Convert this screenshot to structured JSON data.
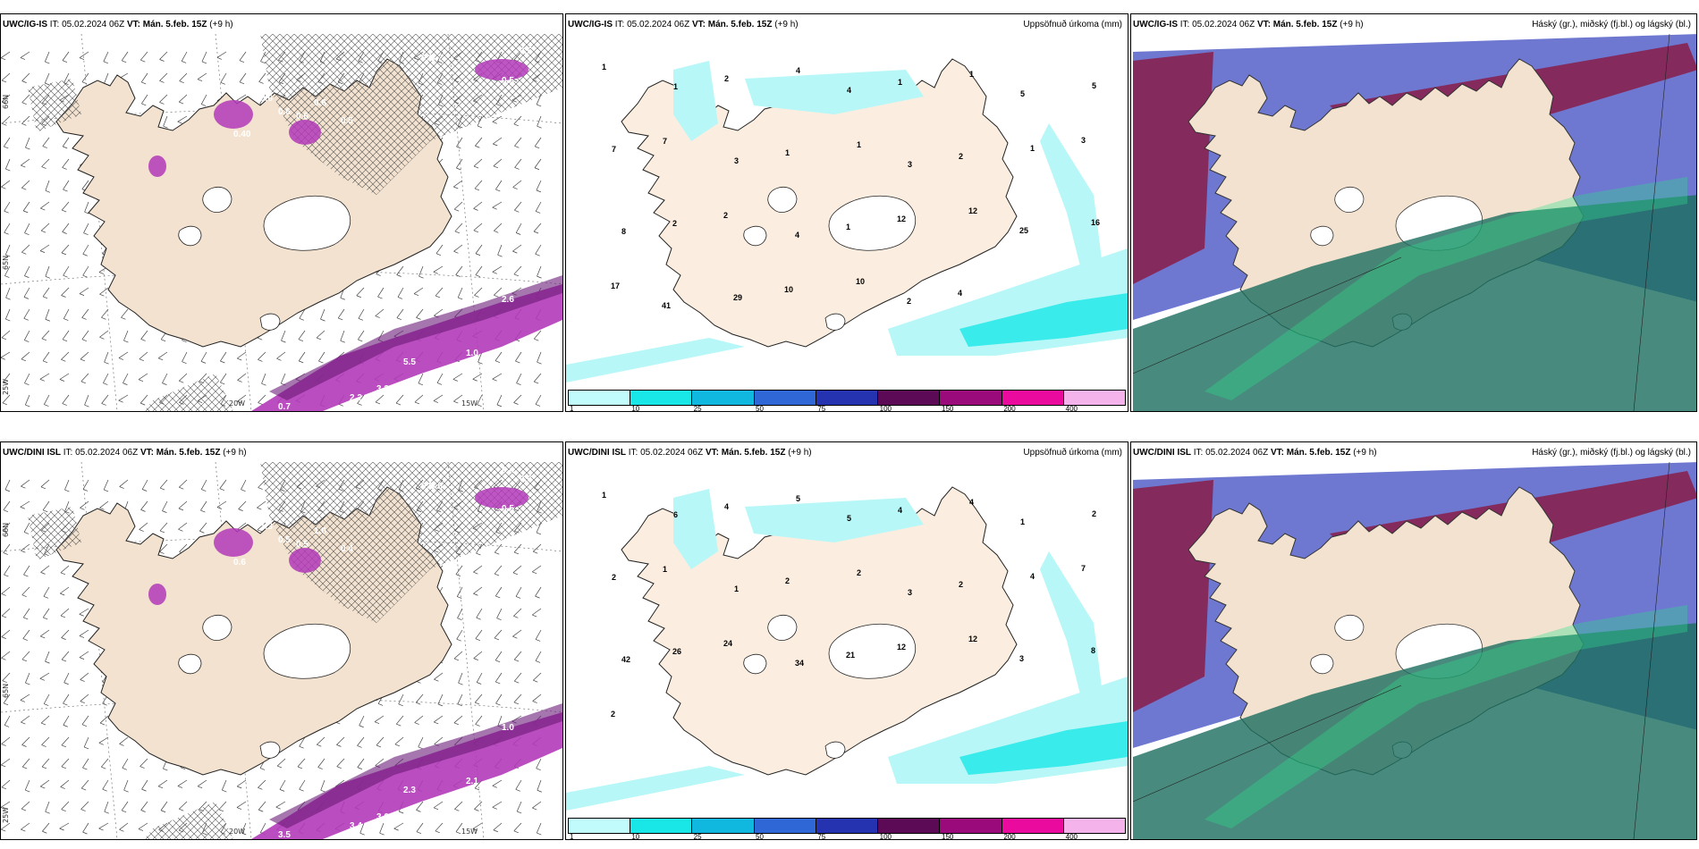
{
  "rows": [
    {
      "wind_panel": {
        "model": "UWC/IG-IS",
        "it": "IT: 05.02.2024 06Z",
        "vt": "VT: Mán. 5.feb. 15Z",
        "lead": "(+9 h)"
      },
      "precip_panel": {
        "model": "UWC/IG-IS",
        "it": "IT: 05.02.2024 06Z",
        "vt": "VT: Mán. 5.feb. 15Z",
        "lead": "(+9 h)",
        "right_title": "Uppsöfnuð úrkoma (mm)"
      },
      "cloud_panel": {
        "model": "UWC/IG-IS",
        "it": "IT: 05.02.2024 06Z",
        "vt": "VT: Mán. 5.feb. 15Z",
        "lead": "(+9 h)",
        "right_title": "Háský (gr.), miðský (fj.bl.) og lágský (bl.)"
      },
      "wind_labels": [
        "0.5",
        "0.6",
        "0.5",
        "0.40",
        "0.7",
        "0.6",
        "0.6",
        "0.5",
        "0.6",
        "0.6",
        "2.6",
        "1.0",
        "1.1",
        "5.5",
        "3.3",
        "2.2",
        "1.8",
        "0.7"
      ],
      "precip_labels": [
        "1",
        "1",
        "2",
        "4",
        "4",
        "1",
        "1",
        "5",
        "5",
        "7",
        "7",
        "3",
        "1",
        "1",
        "3",
        "2",
        "1",
        "3",
        "8",
        "2",
        "2",
        "4",
        "1",
        "12",
        "12",
        "25",
        "16",
        "17",
        "41",
        "29",
        "10",
        "10",
        "2",
        "4"
      ]
    },
    {
      "wind_panel": {
        "model": "UWC/DINI ISL",
        "it": "IT: 05.02.2024 06Z",
        "vt": "VT: Mán. 5.feb. 15Z",
        "lead": "(+9 h)"
      },
      "precip_panel": {
        "model": "UWC/DINI ISL",
        "it": "IT: 05.02.2024 06Z",
        "vt": "VT: Mán. 5.feb. 15Z",
        "lead": "(+9 h)",
        "right_title": "Uppsöfnuð úrkoma (mm)"
      },
      "cloud_panel": {
        "model": "UWC/DINI ISL",
        "it": "IT: 05.02.2024 06Z",
        "vt": "VT: Mán. 5.feb. 15Z",
        "lead": "(+9 h)",
        "right_title": "Háský (gr.), miðský (fj.bl.) og lágský (bl.)"
      },
      "wind_labels": [
        "0.6",
        "0.5",
        "0.5",
        "0.6",
        "0.6",
        "0.5",
        "0.5",
        "0.4",
        "1.0",
        "1.3",
        "1.0",
        "2.1",
        "3.7",
        "2.3",
        "3.0",
        "3.4",
        "2.7",
        "3.5",
        "0.4"
      ],
      "precip_labels": [
        "1",
        "6",
        "4",
        "5",
        "5",
        "4",
        "4",
        "1",
        "2",
        "2",
        "1",
        "1",
        "2",
        "2",
        "3",
        "2",
        "4",
        "7",
        "42",
        "26",
        "24",
        "34",
        "21",
        "12",
        "12",
        "3",
        "8",
        "2"
      ]
    }
  ],
  "axis_labels": {
    "lat66": "66N",
    "lat65": "65N",
    "lon25": "25W",
    "lon20": "20W",
    "lon15": "15W"
  },
  "legend": {
    "ticks": [
      "1",
      "10",
      "25",
      "50",
      "75",
      "100",
      "150",
      "200",
      "400"
    ],
    "colors": [
      "#c2fbfb",
      "#19e7e7",
      "#10b8e0",
      "#2f68d6",
      "#2633b0",
      "#5c0a55",
      "#9a0a7a",
      "#ea0a9e",
      "#f5b3ec"
    ]
  },
  "colors": {
    "land": "#f2e2cf",
    "ocean": "#ffffff",
    "wind_precip": "#b33ab8",
    "precip_light": "#b7f7f7",
    "high_cloud": "#8a1c48",
    "mid_cloud": "#5560c8",
    "low_cloud": "#1a6e5e"
  }
}
